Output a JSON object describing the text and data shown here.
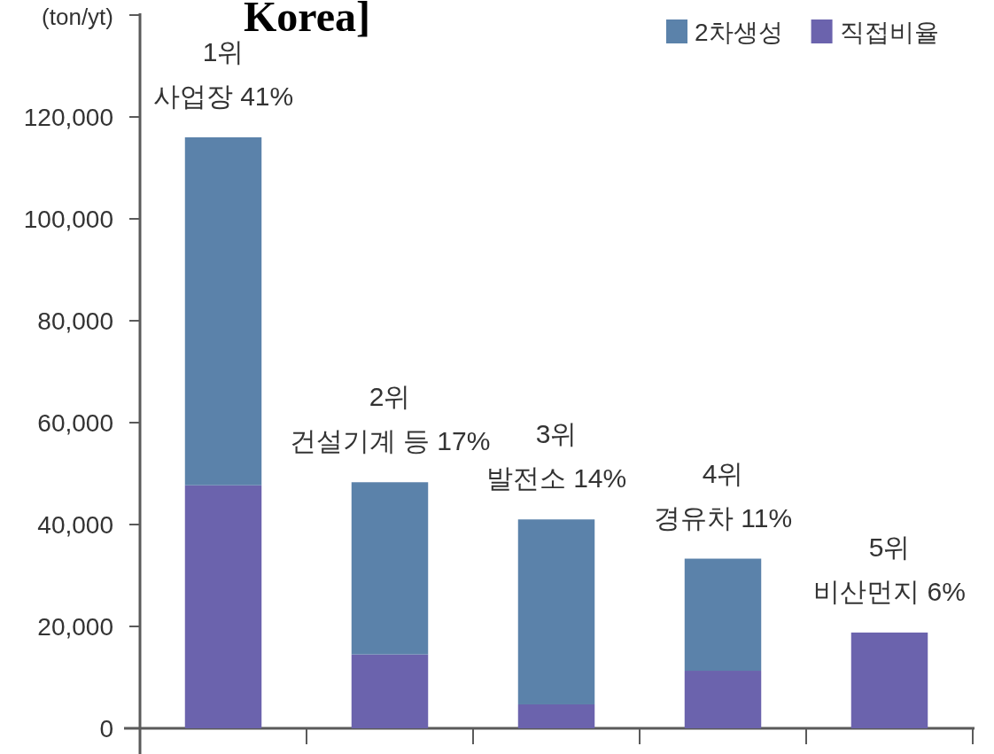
{
  "chart_data": {
    "type": "bar",
    "title": "Korea]",
    "ylabel": "(ton/yt)",
    "categories": [
      "1위\n사업장 41%",
      "2위\n건설기계 등 17%",
      "3위\n발전소 14%",
      "4위\n경유차 11%",
      "5위\n비산먼지 6%"
    ],
    "stacked": true,
    "series": [
      {
        "name": "직접비율",
        "color": "#6b63ad",
        "values": [
          47700,
          14500,
          4700,
          11300,
          18800
        ]
      },
      {
        "name": "2차생성",
        "color": "#5b82aa",
        "values": [
          68300,
          33800,
          36300,
          22000,
          null
        ]
      }
    ],
    "ylim": [
      0,
      140000
    ],
    "yticks": [
      0,
      {
        "value": 20000,
        "label": "20,000"
      },
      {
        "value": 40000,
        "label": "40,000"
      },
      {
        "value": 60000,
        "label": "60,000"
      },
      {
        "value": 80000,
        "label": "80,000"
      },
      {
        "value": 100000,
        "label": "100,000"
      },
      {
        "value": 120000,
        "label": "120,000"
      },
      {
        "value": 140000,
        "label": null
      }
    ],
    "legend": "top right"
  }
}
